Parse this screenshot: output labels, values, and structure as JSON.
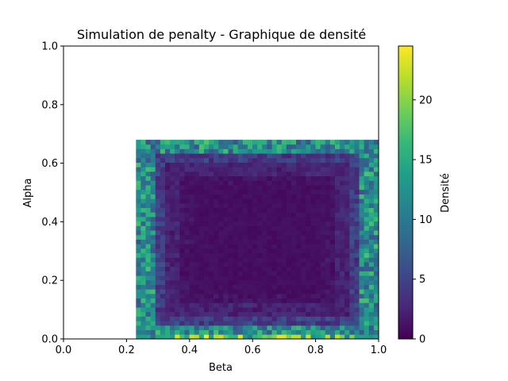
{
  "chart_data": {
    "type": "heatmap",
    "title": "Simulation de penalty - Graphique de densité",
    "xlabel": "Beta",
    "ylabel": "Alpha",
    "xlim": [
      0.0,
      1.0
    ],
    "ylim": [
      0.0,
      1.0
    ],
    "xticks": [
      "0.0",
      "0.2",
      "0.4",
      "0.6",
      "0.8",
      "1.0"
    ],
    "yticks": [
      "0.0",
      "0.2",
      "0.4",
      "0.6",
      "0.8",
      "1.0"
    ],
    "grid": false,
    "colorbar": {
      "label": "Densité",
      "range": [
        0,
        24.5
      ],
      "ticks": [
        "0",
        "5",
        "10",
        "15",
        "20"
      ],
      "colormap": "viridis"
    },
    "data_extent": {
      "beta": [
        0.23,
        1.0
      ],
      "alpha": [
        0.0,
        0.68
      ]
    },
    "grid_size": {
      "cols": 50,
      "rows": 44
    },
    "density_pattern": {
      "ring_levels": [
        {
          "level": 0.08,
          "density_low": 6,
          "density_high": 17
        },
        {
          "level": 0.17,
          "density_low": 2,
          "density_high": 6
        },
        {
          "level": 0.28,
          "density_low": 1,
          "density_high": 3
        },
        {
          "level": 0.4,
          "density_low": 0,
          "density_high": 1.5
        }
      ],
      "bottom_row_peak": 24,
      "background": 0.5
    }
  },
  "colors": {
    "viridis": [
      "#440154",
      "#482878",
      "#3e4989",
      "#31688e",
      "#26828e",
      "#1f9e89",
      "#35b779",
      "#6ece58",
      "#b5de2b",
      "#fde725"
    ],
    "axis": "#000000",
    "background": "#ffffff"
  }
}
